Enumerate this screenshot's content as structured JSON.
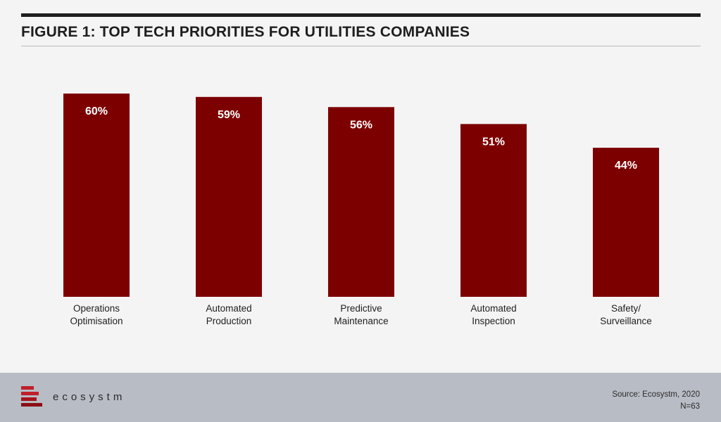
{
  "header": {
    "title": "FIGURE 1: TOP TECH PRIORITIES FOR UTILITIES COMPANIES"
  },
  "chart_data": {
    "type": "bar",
    "title": "FIGURE 1: TOP TECH PRIORITIES FOR UTILITIES COMPANIES",
    "categories": [
      [
        "Operations",
        "Optimisation"
      ],
      [
        "Automated",
        "Production"
      ],
      [
        "Predictive",
        "Maintenance"
      ],
      [
        "Automated",
        "Inspection"
      ],
      [
        "Safety/",
        "Surveillance"
      ]
    ],
    "values": [
      60,
      59,
      56,
      51,
      44
    ],
    "value_labels": [
      "60%",
      "59%",
      "56%",
      "51%",
      "44%"
    ],
    "unit": "%",
    "ylim": [
      0,
      60
    ],
    "grid": false,
    "legend": "none",
    "bar_color": "#7d0000",
    "label_color": "#ffffff"
  },
  "footer": {
    "logo_text": "ecosystm",
    "source": "Source: Ecosystm, 2020",
    "sample": "N=63"
  },
  "colors": {
    "background": "#f4f4f4",
    "footer": "#b8bcc4",
    "bar": "#7d0000",
    "logo_red": "#c0202a",
    "logo_dark": "#8c0f16"
  }
}
